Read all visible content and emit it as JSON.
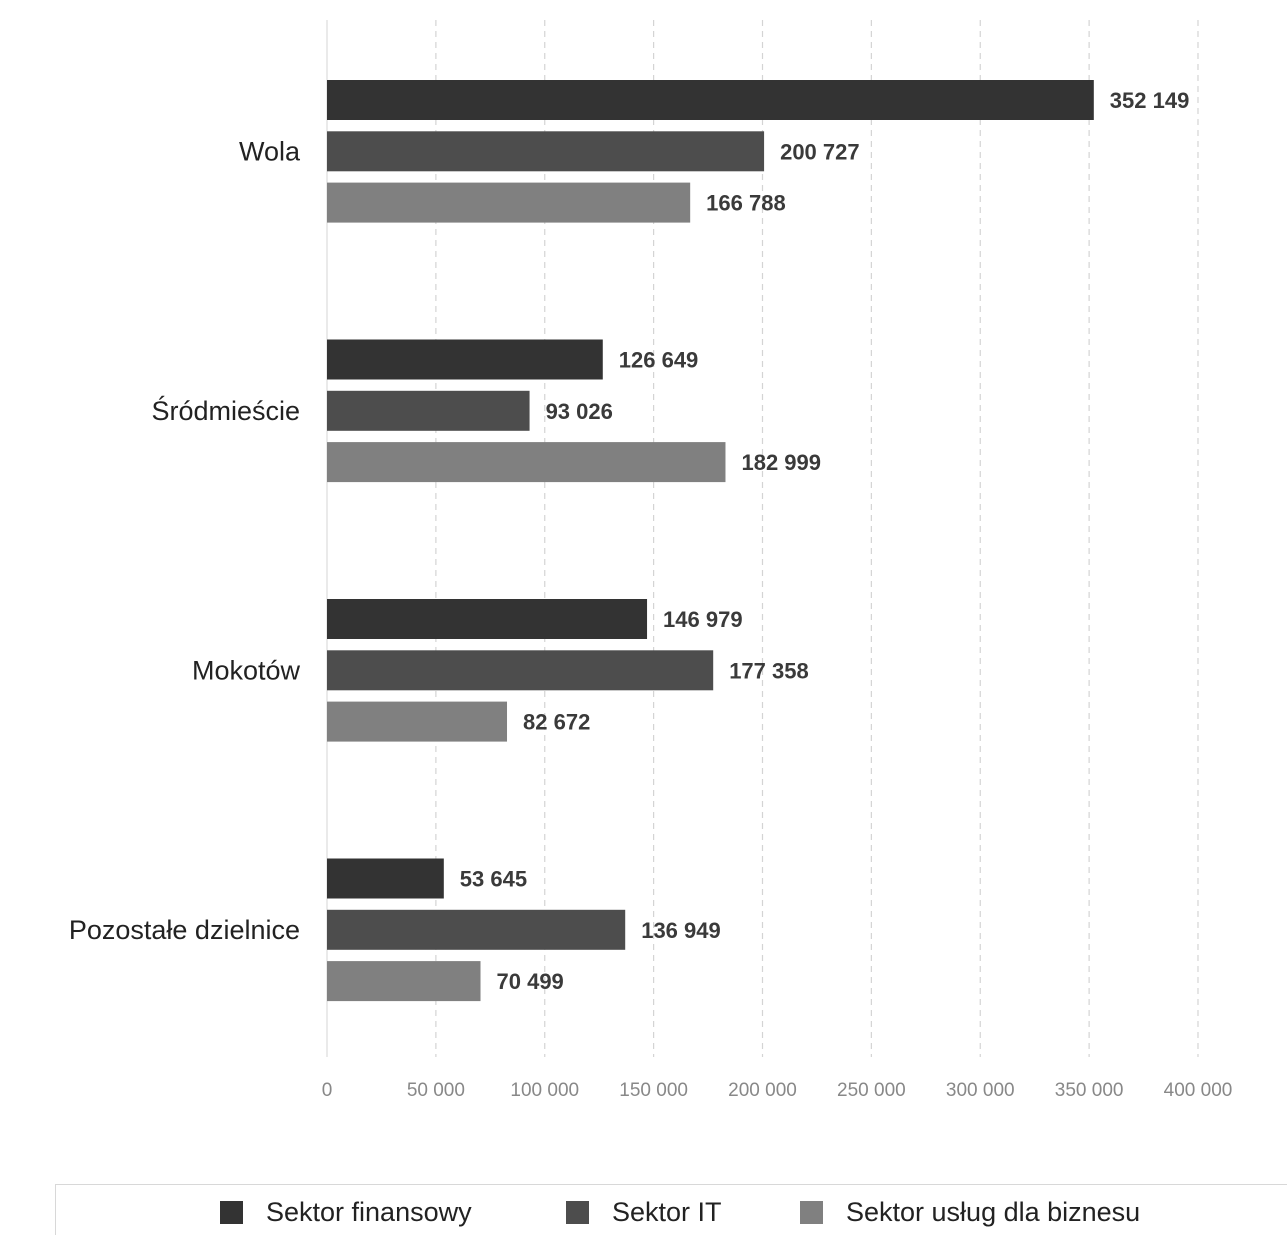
{
  "chart_data": {
    "type": "bar",
    "orientation": "horizontal",
    "categories": [
      "Wola",
      "Śródmieście",
      "Mokotów",
      "Pozostałe dzielnice"
    ],
    "series": [
      {
        "name": "Sektor finansowy",
        "color": "#333333",
        "values": [
          352149,
          126649,
          146979,
          53645
        ]
      },
      {
        "name": "Sektor IT",
        "color": "#4d4d4d",
        "values": [
          200727,
          93026,
          177358,
          136949
        ]
      },
      {
        "name": "Sektor usług dla biznesu",
        "color": "#808080",
        "values": [
          166788,
          182999,
          82672,
          70499
        ]
      }
    ],
    "value_labels": [
      [
        "352 149",
        "126 649",
        "146 979",
        "53 645"
      ],
      [
        "200 727",
        "93 026",
        "177 358",
        "136 949"
      ],
      [
        "166 788",
        "182 999",
        "82 672",
        "70 499"
      ]
    ],
    "xlim": [
      0,
      400000
    ],
    "xticks": [
      0,
      50000,
      100000,
      150000,
      200000,
      250000,
      300000,
      350000,
      400000
    ],
    "xtick_labels": [
      "0",
      "50 000",
      "100 000",
      "150 000",
      "200 000",
      "250 000",
      "300 000",
      "350 000",
      "400 000"
    ],
    "grid": "vertical-dashed",
    "legend_position": "bottom",
    "title": "",
    "xlabel": "",
    "ylabel": ""
  }
}
